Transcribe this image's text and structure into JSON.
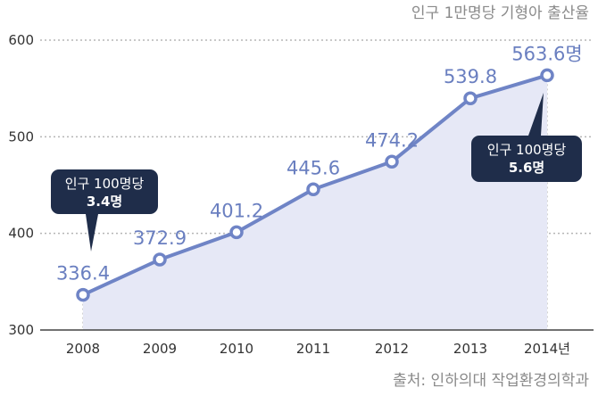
{
  "chart_data": {
    "type": "line",
    "title": "",
    "subtitle": "인구 1만명당 기형아 출산율",
    "source": "출처: 인하의대 작업환경의학과",
    "x_tick_labels": [
      "2008",
      "2009",
      "2010",
      "2011",
      "2012",
      "2013",
      "2014년"
    ],
    "y_tick_labels": [
      "300",
      "400",
      "500",
      "600"
    ],
    "ylim": [
      300,
      600
    ],
    "grid": true,
    "series": [
      {
        "x": [
          2008,
          2009,
          2010,
          2011,
          2012,
          2013,
          2014
        ],
        "values": [
          336.4,
          372.9,
          401.2,
          445.6,
          474.2,
          539.8,
          563.6
        ],
        "labels": [
          "336.4",
          "372.9",
          "401.2",
          "445.6",
          "474.2",
          "539.8",
          "563.6명"
        ]
      }
    ],
    "annotations": [
      {
        "line1": "인구 100명당",
        "line2": "3.4명",
        "points_to": 2008
      },
      {
        "line1": "인구 100명당",
        "line2": "5.6명",
        "points_to": 2014
      }
    ],
    "colors": {
      "line": "#6f84c6",
      "area": "#e6e8f6",
      "marker_fill": "#ffffff",
      "callout": "#1f2d4a",
      "grid": "#b5b5b5"
    }
  }
}
